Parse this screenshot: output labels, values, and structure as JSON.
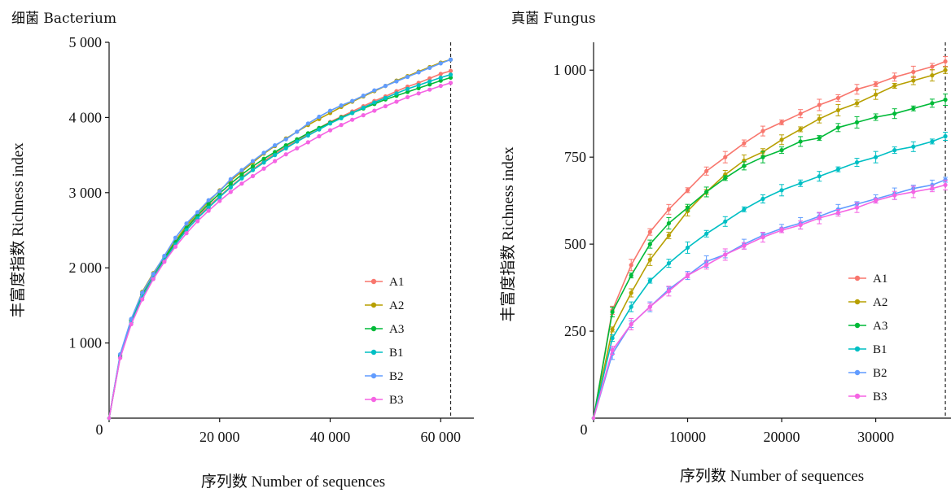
{
  "chart_data": [
    {
      "type": "line",
      "title": "细菌 Bacterium",
      "xlabel": "序列数  Number of sequences",
      "ylabel": "丰富度指数  Richness index",
      "xlim": [
        0,
        66000
      ],
      "ylim": [
        0,
        5000
      ],
      "xticks": [
        0,
        20000,
        40000,
        60000
      ],
      "xtick_labels": [
        "0",
        "20 000",
        "40 000",
        "60 000"
      ],
      "yticks": [
        1000,
        2000,
        3000,
        4000,
        5000
      ],
      "ytick_labels": [
        "1 000",
        "2 000",
        "3 000",
        "4 000",
        "5 000"
      ],
      "x0_label": "0",
      "vline_x": 61800,
      "legend_position": "bottom-right",
      "x": [
        0,
        2000,
        4000,
        6000,
        8000,
        10000,
        12000,
        14000,
        16000,
        18000,
        20000,
        22000,
        24000,
        26000,
        28000,
        30000,
        32000,
        34000,
        36000,
        38000,
        40000,
        42000,
        44000,
        46000,
        48000,
        50000,
        52000,
        54000,
        56000,
        58000,
        60000,
        61800
      ],
      "series": [
        {
          "name": "A1",
          "color": "#F8766D",
          "values": [
            0,
            820,
            1290,
            1640,
            1900,
            2120,
            2330,
            2520,
            2680,
            2820,
            2950,
            3080,
            3200,
            3310,
            3420,
            3520,
            3610,
            3690,
            3780,
            3860,
            3940,
            4010,
            4080,
            4150,
            4220,
            4280,
            4350,
            4410,
            4460,
            4520,
            4580,
            4620
          ]
        },
        {
          "name": "A2",
          "color": "#B79F00",
          "values": [
            0,
            840,
            1310,
            1680,
            1930,
            2150,
            2360,
            2560,
            2730,
            2880,
            3030,
            3160,
            3280,
            3400,
            3520,
            3620,
            3720,
            3810,
            3900,
            3980,
            4060,
            4140,
            4210,
            4280,
            4350,
            4420,
            4490,
            4550,
            4610,
            4670,
            4730,
            4770
          ]
        },
        {
          "name": "A3",
          "color": "#00BA38",
          "values": [
            0,
            830,
            1300,
            1650,
            1910,
            2130,
            2340,
            2530,
            2700,
            2850,
            2990,
            3120,
            3240,
            3350,
            3450,
            3540,
            3630,
            3710,
            3790,
            3860,
            3930,
            4000,
            4060,
            4120,
            4180,
            4240,
            4290,
            4340,
            4390,
            4440,
            4490,
            4530
          ]
        },
        {
          "name": "B1",
          "color": "#00BFC4",
          "values": [
            0,
            810,
            1270,
            1610,
            1870,
            2100,
            2310,
            2500,
            2660,
            2800,
            2940,
            3070,
            3190,
            3300,
            3400,
            3500,
            3590,
            3680,
            3760,
            3840,
            3920,
            3990,
            4060,
            4130,
            4200,
            4260,
            4320,
            4380,
            4430,
            4480,
            4530,
            4570
          ]
        },
        {
          "name": "B2",
          "color": "#619CFF",
          "values": [
            0,
            850,
            1320,
            1670,
            1920,
            2160,
            2400,
            2590,
            2740,
            2900,
            3020,
            3180,
            3300,
            3420,
            3530,
            3630,
            3710,
            3810,
            3920,
            4010,
            4090,
            4160,
            4220,
            4290,
            4360,
            4420,
            4480,
            4540,
            4600,
            4660,
            4720,
            4770
          ]
        },
        {
          "name": "B3",
          "color": "#F564E3",
          "values": [
            0,
            800,
            1250,
            1580,
            1850,
            2080,
            2280,
            2460,
            2620,
            2760,
            2890,
            3010,
            3120,
            3220,
            3320,
            3420,
            3510,
            3590,
            3670,
            3750,
            3830,
            3900,
            3970,
            4030,
            4090,
            4150,
            4210,
            4270,
            4320,
            4370,
            4420,
            4460
          ]
        }
      ]
    },
    {
      "type": "line",
      "title": "真菌 Fungus",
      "xlabel": "序列数  Number of sequences",
      "ylabel": "丰富度指数  Richness index",
      "xlim": [
        0,
        38000
      ],
      "ylim": [
        0,
        1080
      ],
      "xticks": [
        0,
        10000,
        20000,
        30000
      ],
      "xtick_labels": [
        "0",
        "10000",
        "20000",
        "30000"
      ],
      "yticks": [
        250,
        500,
        750,
        1000
      ],
      "ytick_labels": [
        "250",
        "500",
        "750",
        "1 000"
      ],
      "x0_label": "0",
      "vline_x": 37400,
      "legend_position": "bottom-right",
      "x": [
        0,
        2000,
        4000,
        6000,
        8000,
        10000,
        12000,
        14000,
        16000,
        18000,
        20000,
        22000,
        24000,
        26000,
        28000,
        30000,
        32000,
        34000,
        36000,
        37400
      ],
      "series": [
        {
          "name": "A1",
          "color": "#F8766D",
          "values": [
            0,
            310,
            440,
            535,
            600,
            655,
            710,
            750,
            790,
            825,
            850,
            875,
            900,
            920,
            945,
            960,
            980,
            995,
            1010,
            1025
          ]
        },
        {
          "name": "A2",
          "color": "#B79F00",
          "values": [
            0,
            255,
            360,
            455,
            525,
            595,
            650,
            700,
            740,
            765,
            800,
            830,
            860,
            885,
            905,
            930,
            955,
            970,
            985,
            1000
          ]
        },
        {
          "name": "A3",
          "color": "#00BA38",
          "values": [
            0,
            305,
            410,
            500,
            560,
            605,
            650,
            690,
            725,
            750,
            770,
            795,
            805,
            835,
            850,
            865,
            875,
            890,
            905,
            915
          ]
        },
        {
          "name": "B1",
          "color": "#00BFC4",
          "values": [
            0,
            230,
            320,
            395,
            445,
            490,
            530,
            565,
            600,
            630,
            655,
            675,
            695,
            715,
            735,
            750,
            770,
            780,
            795,
            810
          ]
        },
        {
          "name": "B2",
          "color": "#619CFF",
          "values": [
            0,
            185,
            270,
            320,
            370,
            410,
            450,
            470,
            500,
            525,
            545,
            560,
            580,
            600,
            615,
            630,
            645,
            660,
            670,
            685
          ]
        },
        {
          "name": "B3",
          "color": "#F564E3",
          "values": [
            0,
            195,
            270,
            320,
            365,
            410,
            440,
            470,
            495,
            520,
            540,
            555,
            575,
            590,
            605,
            625,
            640,
            650,
            660,
            670
          ]
        }
      ]
    }
  ]
}
